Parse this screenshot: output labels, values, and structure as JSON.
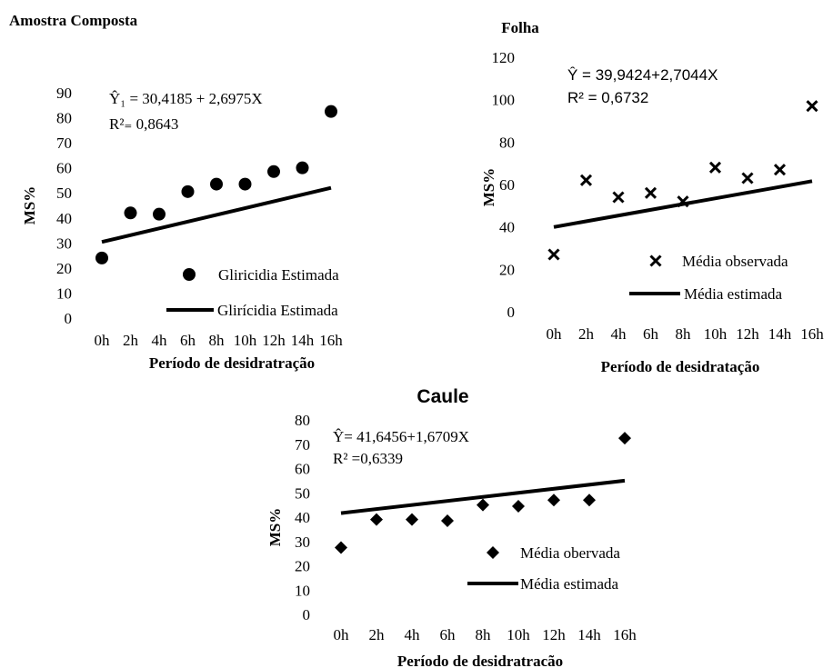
{
  "chart_data": [
    {
      "type": "scatter",
      "title": "Amostra Composta",
      "xlabel": "Período de desidratração",
      "ylabel": "MS%",
      "categories": [
        "0h",
        "2h",
        "4h",
        "6h",
        "8h",
        "10h",
        "12h",
        "14h",
        "16h"
      ],
      "yticks": [
        "0",
        "10",
        "20",
        "30",
        "40",
        "50",
        "60",
        "70",
        "80",
        "90"
      ],
      "ylim": [
        0,
        90
      ],
      "marker": "circle",
      "series": [
        {
          "name": "Gliricidia Estimada",
          "values": [
            24,
            42,
            41.5,
            50.5,
            53.5,
            53.5,
            58.5,
            60,
            82.5
          ]
        }
      ],
      "trend": {
        "name": "Glirícidia Estimada",
        "intercept": 30.4185,
        "slope": 2.6975
      },
      "equation": "Ŷ₁ = 30,4185 + 2,6975X",
      "r2": "R²₌ 0,8643",
      "grid": false,
      "legend_position": "bottom-right"
    },
    {
      "type": "scatter",
      "title": "Folha",
      "xlabel": "Período de desidratação",
      "ylabel": "MS%",
      "categories": [
        "0h",
        "2h",
        "4h",
        "6h",
        "8h",
        "10h",
        "12h",
        "14h",
        "16h"
      ],
      "yticks": [
        "0",
        "20",
        "40",
        "60",
        "80",
        "100",
        "120"
      ],
      "ylim": [
        0,
        120
      ],
      "marker": "x",
      "series": [
        {
          "name": "Média observada",
          "values": [
            27,
            62,
            54,
            56,
            52,
            68,
            63,
            67,
            97
          ]
        }
      ],
      "trend": {
        "name": "Média estimada",
        "intercept": 39.9424,
        "slope": 2.7044
      },
      "equation": "Ŷ = 39,9424+2,7044X",
      "r2": "R² = 0,6732",
      "grid": false,
      "legend_position": "bottom-right"
    },
    {
      "type": "scatter",
      "title": "Caule",
      "xlabel": "Período de desidratracão",
      "ylabel": "MS%",
      "categories": [
        "0h",
        "2h",
        "4h",
        "6h",
        "8h",
        "10h",
        "12h",
        "14h",
        "16h"
      ],
      "yticks": [
        "0",
        "10",
        "20",
        "30",
        "40",
        "50",
        "60",
        "70",
        "80"
      ],
      "ylim": [
        0,
        80
      ],
      "marker": "diamond",
      "series": [
        {
          "name": "Média obervada",
          "values": [
            27.5,
            39,
            39,
            38.5,
            45,
            44.5,
            47,
            47,
            72.5
          ]
        }
      ],
      "trend": {
        "name": "Média estimada",
        "intercept": 41.6456,
        "slope": 1.6709
      },
      "equation": "Ŷ= 41,6456+1,6709X",
      "r2": "R² =0,6339",
      "grid": false,
      "legend_position": "bottom-right"
    }
  ]
}
